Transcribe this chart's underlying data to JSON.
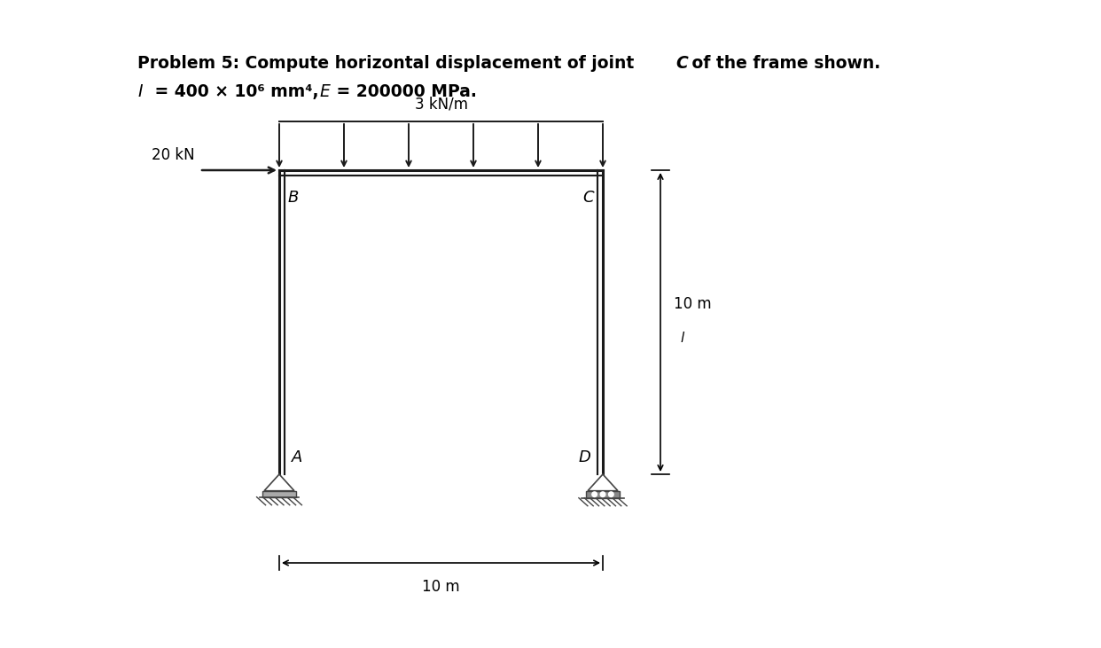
{
  "bg_color": "#ffffff",
  "frame_color": "#1a1a1a",
  "title1": "Problem 5: Compute horizontal displacement of joint ",
  "title1_C": "C",
  "title1_end": " of the frame shown.",
  "title2_I": "I",
  "title2_rest": " = 400 × 10⁶ mm⁴, ",
  "title2_E": "E",
  "title2_rest2": " = 200000 MPa.",
  "load_label": "3 kN/m",
  "force_label": "20 kN",
  "dim_horiz": "10 m",
  "dim_vert": "10 m",
  "n_load_arrows": 6,
  "joint_labels": [
    "B",
    "C",
    "A",
    "D"
  ],
  "frame_lw": 2.2,
  "support_color": "#555555",
  "dim_color": "#111111"
}
